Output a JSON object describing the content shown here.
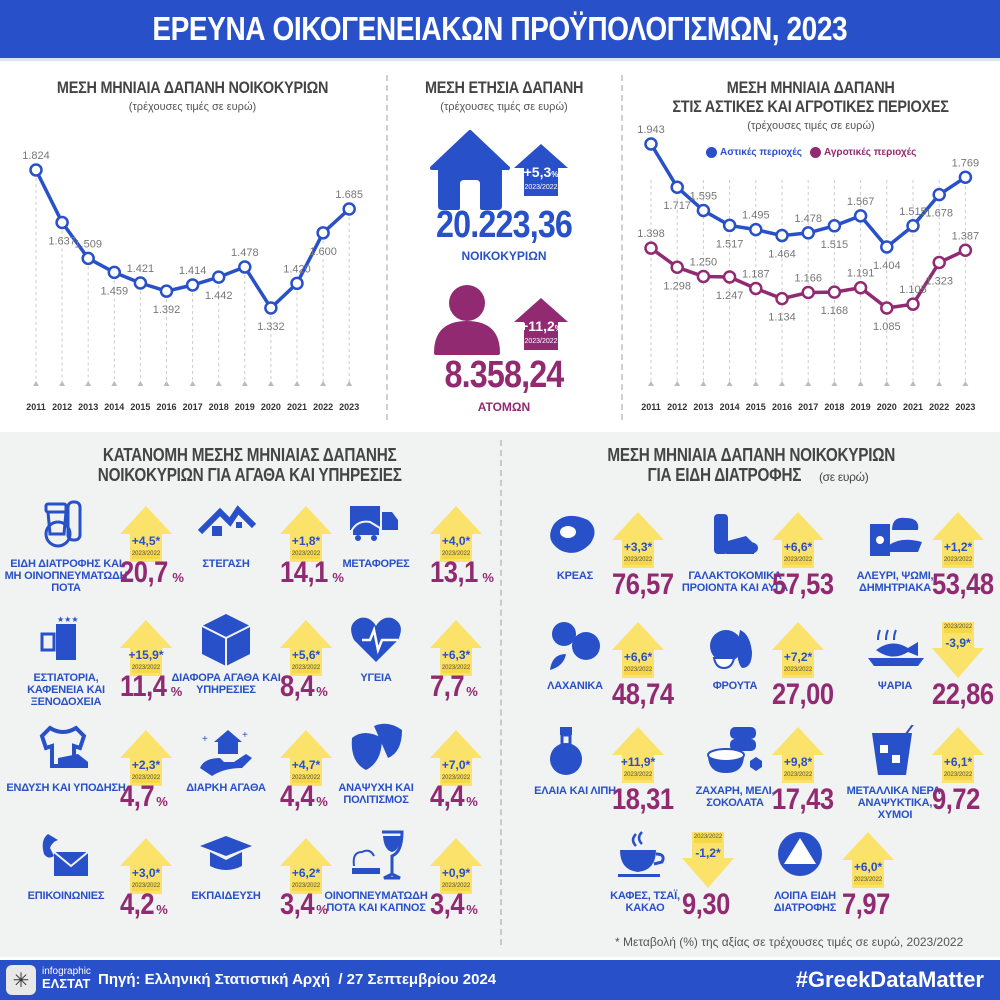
{
  "header": {
    "title": "ΕΡΕΥΝΑ ΟΙΚΟΓΕΝΕΙΑΚΩΝ ΠΡΟΫΠΟΛΟΓΙΣΜΩΝ, 2023"
  },
  "colors": {
    "blue": "#2850c8",
    "purple": "#922a72",
    "yellow": "#fbe26a",
    "grey_text": "#444444",
    "background_bottom": "#f1f2f2"
  },
  "panel_left": {
    "title": "ΜΕΣΗ ΜΗΝΙΑΙΑ ΔΑΠΑΝΗ ΝΟΙΚΟΚΥΡΙΩΝ",
    "subtitle": "(τρέχουσες τιμές σε ευρώ)"
  },
  "panel_mid": {
    "title": "ΜΕΣΗ ΕΤΗΣΙΑ ΔΑΠΑΝΗ",
    "subtitle": "(τρέχουσες τιμές σε ευρώ)",
    "household": {
      "value": "20.223,36",
      "label": "ΝΟΙΚΟΚΥΡΙΩΝ",
      "change": "+5,3",
      "pct": "%",
      "period": "2023/2022"
    },
    "person": {
      "value": "8.358,24",
      "label": "ΑΤΟΜΩΝ",
      "change": "+11,2",
      "pct": "%",
      "period": "2023/2022"
    }
  },
  "panel_right": {
    "title_line1": "ΜΕΣΗ ΜΗΝΙΑΙΑ ΔΑΠΑΝΗ",
    "title_line2": "ΣΤΙΣ ΑΣΤΙΚΕΣ ΚΑΙ ΑΓΡΟΤΙΚΕΣ ΠΕΡΙΟΧΕΣ",
    "subtitle": "(τρέχουσες τιμές σε ευρώ)",
    "legend_urban": "Αστικές περιοχές",
    "legend_rural": "Αγροτικές περιοχές"
  },
  "chart_data": [
    {
      "type": "line",
      "title": "ΜΕΣΗ ΜΗΝΙΑΙΑ ΔΑΠΑΝΗ ΝΟΙΚΟΚΥΡΙΩΝ",
      "subtitle": "(τρέχουσες τιμές σε ευρώ)",
      "x": [
        "2011",
        "2012",
        "2013",
        "2014",
        "2015",
        "2016",
        "2017",
        "2018",
        "2019",
        "2020",
        "2021",
        "2022",
        "2023"
      ],
      "series": [
        {
          "name": "Νοικοκυριά",
          "values": [
            1824,
            1637,
            1509,
            1459,
            1421,
            1392,
            1414,
            1442,
            1478,
            1332,
            1420,
            1600,
            1685
          ]
        }
      ],
      "labels": [
        "1.824",
        "1.637",
        "1.509",
        "1.459",
        "1.421",
        "1.392",
        "1.414",
        "1.442",
        "1.478",
        "1.332",
        "1.420",
        "1.600",
        "1.685"
      ],
      "xlabel": "",
      "ylabel": "",
      "grid": false
    },
    {
      "type": "line",
      "title": "ΜΕΣΗ ΜΗΝΙΑΙΑ ΔΑΠΑΝΗ ΣΤΙΣ ΑΣΤΙΚΕΣ ΚΑΙ ΑΓΡΟΤΙΚΕΣ ΠΕΡΙΟΧΕΣ",
      "subtitle": "(τρέχουσες τιμές σε ευρώ)",
      "x": [
        "2011",
        "2012",
        "2013",
        "2014",
        "2015",
        "2016",
        "2017",
        "2018",
        "2019",
        "2020",
        "2021",
        "2022",
        "2023"
      ],
      "series": [
        {
          "name": "Αστικές περιοχές",
          "values": [
            1943,
            1717,
            1595,
            1517,
            1495,
            1464,
            1478,
            1515,
            1567,
            1404,
            1515,
            1678,
            1769
          ],
          "labels": [
            "1.943",
            "1.717",
            "1.595",
            "1.517",
            "1.495",
            "1.464",
            "1.478",
            "1.515",
            "1.567",
            "1.404",
            "1.515",
            "1.678",
            "1.769"
          ]
        },
        {
          "name": "Αγροτικές περιοχές",
          "values": [
            1398,
            1298,
            1250,
            1247,
            1187,
            1134,
            1166,
            1168,
            1191,
            1085,
            1105,
            1323,
            1387
          ],
          "labels": [
            "1.398",
            "1.298",
            "1.250",
            "1.247",
            "1.187",
            "1.134",
            "1.166",
            "1.168",
            "1.191",
            "1.085",
            "1.105",
            "1.323",
            "1.387"
          ]
        }
      ],
      "legend_position": "top",
      "grid": false
    },
    {
      "type": "table",
      "title": "ΚΑΤΑΝΟΜΗ ΜΕΣΗΣ ΜΗΝΙΑΙΑΣ ΔΑΠΑΝΗΣ ΝΟΙΚΟΚΥΡΙΩΝ ΓΙΑ ΑΓΑΘΑ ΚΑΙ ΥΠΗΡΕΣΙΕΣ",
      "columns": [
        "category",
        "share_pct",
        "change_2023_2022_pct"
      ],
      "rows": [
        [
          "Είδη διατροφής και μη οινοπνευματώδη ποτά",
          20.7,
          4.5
        ],
        [
          "Στέγαση",
          14.1,
          1.8
        ],
        [
          "Μεταφορές",
          13.1,
          4.0
        ],
        [
          "Εστιατόρια, καφενεία και ξενοδοχεία",
          11.4,
          15.9
        ],
        [
          "Διάφορα αγαθά και υπηρεσίες",
          8.4,
          5.6
        ],
        [
          "Υγεία",
          7.7,
          6.3
        ],
        [
          "Ένδυση και υπόδηση",
          4.7,
          2.3
        ],
        [
          "Διαρκή αγαθά",
          4.4,
          4.7
        ],
        [
          "Αναψυχή και πολιτισμός",
          4.4,
          7.0
        ],
        [
          "Επικοινωνίες",
          4.2,
          3.0
        ],
        [
          "Εκπαίδευση",
          3.4,
          6.2
        ],
        [
          "Οινοπνευματώδη ποτά και καπνός",
          3.4,
          0.9
        ]
      ]
    },
    {
      "type": "table",
      "title": "ΜΕΣΗ ΜΗΝΙΑΙΑ ΔΑΠΑΝΗ ΝΟΙΚΟΚΥΡΙΩΝ ΓΙΑ ΕΙΔΗ ΔΙΑΤΡΟΦΗΣ (σε ευρώ)",
      "columns": [
        "category",
        "value_eur",
        "change_2023_2022_pct"
      ],
      "rows": [
        [
          "Κρέας",
          76.57,
          3.3
        ],
        [
          "Γαλακτοκομικά προϊόντα και αυγά",
          57.53,
          6.6
        ],
        [
          "Αλεύρι, ψωμί, δημητριακά",
          53.48,
          1.2
        ],
        [
          "Λαχανικά",
          48.74,
          6.6
        ],
        [
          "Φρούτα",
          27.0,
          7.2
        ],
        [
          "Ψάρια",
          22.86,
          -3.9
        ],
        [
          "Έλαια και λίπη",
          18.31,
          11.9
        ],
        [
          "Ζάχαρη, μέλι, σοκολάτα",
          17.43,
          9.8
        ],
        [
          "Μεταλλικά νερά, αναψυκτικά, χυμοί",
          9.72,
          6.1
        ],
        [
          "Καφές, τσάι, κακάο",
          9.3,
          -1.2
        ],
        [
          "Λοιπά είδη διατροφής",
          7.97,
          6.0
        ]
      ]
    }
  ],
  "goods": {
    "title_line1": "ΚΑΤΑΝΟΜΗ ΜΕΣΗΣ ΜΗΝΙΑΙΑΣ ΔΑΠΑΝΗΣ",
    "title_line2": "ΝΟΙΚΟΚΥΡΙΩΝ ΓΙΑ ΑΓΑΘΑ ΚΑΙ ΥΠΗΡΕΣΙΕΣ",
    "items": [
      {
        "label": "ΕΙΔΗ ΔΙΑΤΡΟΦΗΣ ΚΑΙ ΜΗ ΟΙΝΟΠΝΕΥΜΑΤΩΔΗ ΠΟΤΑ",
        "value": "20,7",
        "pct": "%",
        "change": "+4,5*",
        "period": "2023/2022",
        "icon": "food-icon"
      },
      {
        "label": "ΣΤΕΓΑΣΗ",
        "value": "14,1",
        "pct": "%",
        "change": "+1,8*",
        "period": "2023/2022",
        "icon": "housing-icon"
      },
      {
        "label": "ΜΕΤΑΦΟΡΕΣ",
        "value": "13,1",
        "pct": "%",
        "change": "+4,0*",
        "period": "2023/2022",
        "icon": "transport-icon"
      },
      {
        "label": "ΕΣΤΙΑΤΟΡΙΑ, ΚΑΦΕΝΕΙΑ ΚΑΙ ΞΕΝΟΔΟΧΕΙΑ",
        "value": "11,4",
        "pct": "%",
        "change": "+15,9*",
        "period": "2023/2022",
        "icon": "hotel-icon"
      },
      {
        "label": "ΔΙΑΦΟΡΑ ΑΓΑΘΑ ΚΑΙ ΥΠΗΡΕΣΙΕΣ",
        "value": "8,4",
        "pct": "%",
        "change": "+5,6*",
        "period": "2023/2022",
        "icon": "box-icon"
      },
      {
        "label": "ΥΓΕΙΑ",
        "value": "7,7",
        "pct": "%",
        "change": "+6,3*",
        "period": "2023/2022",
        "icon": "heart-icon"
      },
      {
        "label": "ΕΝΔΥΣΗ ΚΑΙ ΥΠΟΔΗΣΗ",
        "value": "4,7",
        "pct": "%",
        "change": "+2,3*",
        "period": "2023/2022",
        "icon": "clothing-icon"
      },
      {
        "label": "ΔΙΑΡΚΗ ΑΓΑΘΑ",
        "value": "4,4",
        "pct": "%",
        "change": "+4,7*",
        "period": "2023/2022",
        "icon": "durables-icon"
      },
      {
        "label": "ΑΝΑΨΥΧΗ ΚΑΙ ΠΟΛΙΤΙΣΜΟΣ",
        "value": "4,4",
        "pct": "%",
        "change": "+7,0*",
        "period": "2023/2022",
        "icon": "theatre-masks-icon"
      },
      {
        "label": "ΕΠΙΚΟΙΝΩΝΙΕΣ",
        "value": "4,2",
        "pct": "%",
        "change": "+3,0*",
        "period": "2023/2022",
        "icon": "phone-mail-icon"
      },
      {
        "label": "ΕΚΠΑΙΔΕΥΣΗ",
        "value": "3,4",
        "pct": "%",
        "change": "+6,2*",
        "period": "2023/2022",
        "icon": "graduation-cap-icon"
      },
      {
        "label": "ΟΙΝΟΠΝΕΥΜΑΤΩΔΗ ΠΟΤΑ ΚΑΙ ΚΑΠΝΟΣ",
        "value": "3,4",
        "pct": "%",
        "change": "+0,9*",
        "period": "2023/2022",
        "icon": "wine-cigarette-icon"
      }
    ]
  },
  "food": {
    "title_line1": "ΜΕΣΗ ΜΗΝΙΑΙΑ ΔΑΠΑΝΗ ΝΟΙΚΟΚΥΡΙΩΝ",
    "title_line2": "ΓΙΑ ΕΙΔΗ ΔΙΑΤΡΟΦΗΣ",
    "title_unit": "(σε ευρώ)",
    "items": [
      {
        "label": "ΚΡΕΑΣ",
        "value": "76,57",
        "change": "+3,3*",
        "period": "2023/2022",
        "dir": "up",
        "icon": "meat-icon"
      },
      {
        "label": "ΓΑΛΑΚΤΟΚΟΜΙΚΑ ΠΡΟΙΟΝΤΑ ΚΑΙ ΑΥΓΑ",
        "value": "57,53",
        "change": "+6,6*",
        "period": "2023/2022",
        "dir": "up",
        "icon": "dairy-icon"
      },
      {
        "label": "ΑΛΕΥΡΙ, ΨΩΜΙ, ΔΗΜΗΤΡΙΑΚΑ",
        "value": "53,48",
        "change": "+1,2*",
        "period": "2023/2022",
        "dir": "up",
        "icon": "bread-icon"
      },
      {
        "label": "ΛΑΧΑΝΙΚΑ",
        "value": "48,74",
        "change": "+6,6*",
        "period": "2023/2022",
        "dir": "up",
        "icon": "vegetables-icon"
      },
      {
        "label": "ΦΡΟΥΤΑ",
        "value": "27,00",
        "change": "+7,2*",
        "period": "2023/2022",
        "dir": "up",
        "icon": "fruit-icon"
      },
      {
        "label": "ΨΑΡΙΑ",
        "value": "22,86",
        "change": "-3,9*",
        "period": "2023/2022",
        "dir": "down",
        "icon": "fish-icon"
      },
      {
        "label": "ΕΛΑΙΑ ΚΑΙ ΛΙΠΗ",
        "value": "18,31",
        "change": "+11,9*",
        "period": "2023/2022",
        "dir": "up",
        "icon": "oil-bottle-icon"
      },
      {
        "label": "ΖΑΧΑΡΗ, ΜΕΛΙ, ΣΟΚΟΛΑΤΑ",
        "value": "17,43",
        "change": "+9,8*",
        "period": "2023/2022",
        "dir": "up",
        "icon": "sugar-honey-icon"
      },
      {
        "label": "ΜΕΤΑΛΛΙΚΑ ΝΕΡΑ, ΑΝΑΨΥΚΤΙΚΑ, ΧΥΜΟΙ",
        "value": "9,72",
        "change": "+6,1*",
        "period": "2023/2022",
        "dir": "up",
        "icon": "drink-glass-icon"
      },
      {
        "label": "ΚΑΦΕΣ, ΤΣΑΪ, ΚΑΚΑΟ",
        "value": "9,30",
        "change": "-1,2*",
        "period": "2023/2022",
        "dir": "down",
        "icon": "coffee-cup-icon"
      },
      {
        "label": "ΛΟΙΠΑ ΕΙΔΗ ΔΙΑΤΡΟΦΗΣ",
        "value": "7,97",
        "change": "+6,0*",
        "period": "2023/2022",
        "dir": "up",
        "icon": "triangle-circle-icon"
      }
    ],
    "note": "* Μεταβολή (%) της αξίας σε τρέχουσες τιμές σε ευρώ, 2023/2022"
  },
  "footer": {
    "logo_top": "infographic",
    "logo_bottom": "ΕΛΣΤΑΤ",
    "source": "Πηγή: Ελληνική Στατιστική Αρχή  / 27 Σεπτεμβρίου 2024",
    "hashtag": "#GreekDataMatter"
  }
}
